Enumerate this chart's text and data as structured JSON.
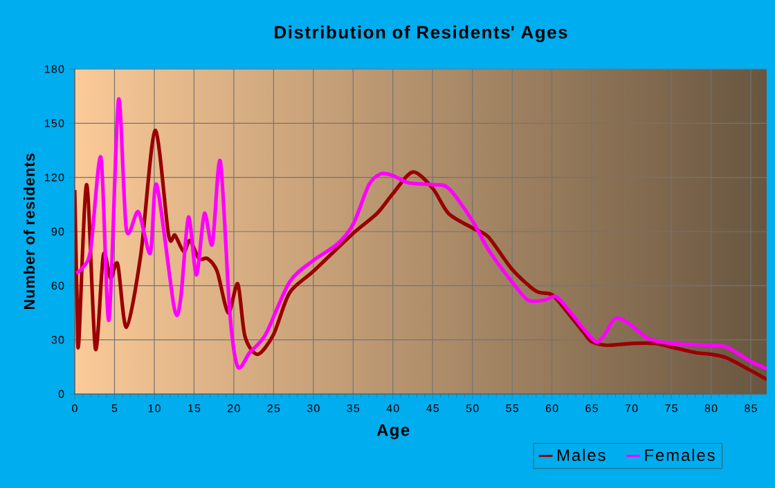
{
  "chart_data": {
    "type": "line",
    "title": "Distribution of Residents' Ages",
    "xlabel": "Age",
    "ylabel": "Number of residents",
    "xlim": [
      0,
      87
    ],
    "ylim": [
      0,
      180
    ],
    "xticks": [
      0,
      5,
      10,
      15,
      20,
      25,
      30,
      35,
      40,
      45,
      50,
      55,
      60,
      65,
      70,
      75,
      80,
      85
    ],
    "yticks": [
      0,
      30,
      60,
      90,
      120,
      150,
      180
    ],
    "grid": true,
    "legend": "bottom right",
    "marker": "none",
    "line_style": "solid",
    "series": [
      {
        "name": "Males",
        "color": "#990000",
        "x": [
          0,
          0.3,
          0.5,
          1.5,
          2.6,
          3.6,
          4.5,
          5.4,
          6.5,
          8.3,
          10.1,
          11.8,
          12.6,
          13.7,
          14.5,
          15.6,
          16.7,
          17.9,
          19.3,
          20.5,
          21.4,
          23,
          25,
          27,
          30,
          35,
          38,
          40,
          42.5,
          45,
          47,
          50,
          52,
          55,
          58,
          60,
          62,
          64,
          65,
          67,
          70,
          73,
          75,
          78,
          80,
          82,
          85,
          87
        ],
        "values": [
          113,
          50,
          28,
          116,
          25,
          77,
          64,
          72,
          37,
          77,
          146,
          88,
          88,
          79,
          85,
          75,
          75,
          68,
          45,
          61,
          32,
          22,
          33,
          56,
          68,
          89,
          100,
          111,
          123,
          114,
          100,
          92,
          87,
          69,
          57,
          55,
          45,
          34,
          29,
          27,
          28,
          28,
          26,
          23,
          22,
          20,
          13,
          8
        ]
      },
      {
        "name": "Females",
        "color": "#ff00ff",
        "x": [
          0.2,
          1,
          2,
          3.3,
          4.3,
          5.5,
          6.5,
          8,
          9.5,
          10.3,
          12.5,
          13.3,
          14.3,
          15.3,
          16.3,
          17.3,
          18.3,
          19.5,
          20.5,
          22,
          24,
          27,
          30,
          33,
          35,
          37,
          38.5,
          40,
          42,
          45,
          47,
          50,
          52,
          55,
          57,
          59,
          60.5,
          62,
          64,
          65.5,
          66.5,
          68,
          70,
          72,
          75,
          80,
          82,
          85,
          87
        ],
        "values": [
          67,
          70,
          80,
          131,
          41,
          163,
          91,
          101,
          78,
          116,
          48,
          52,
          98,
          66,
          100,
          83,
          129,
          45,
          15,
          23,
          33,
          62,
          74,
          83,
          94,
          116,
          122,
          121,
          117,
          116,
          114,
          96,
          80,
          62,
          52,
          52,
          54,
          47,
          36,
          29,
          32,
          42,
          38,
          31,
          28,
          27,
          26,
          18,
          14
        ]
      }
    ]
  }
}
